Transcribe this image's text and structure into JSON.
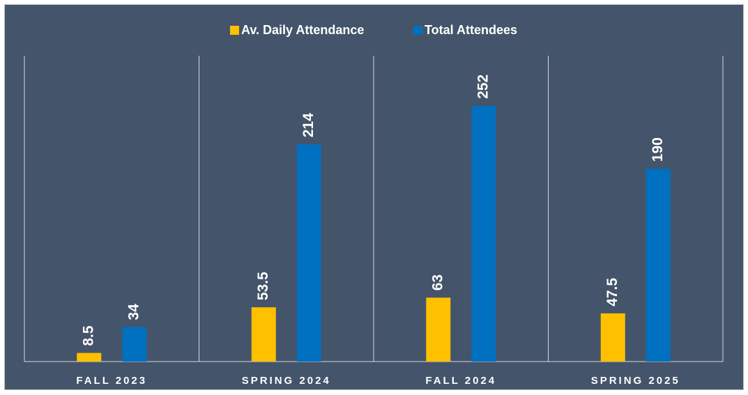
{
  "chart_data": {
    "type": "bar",
    "categories": [
      "FALL 2023",
      "SPRING 2024",
      "FALL 2024",
      "SPRING 2025"
    ],
    "series": [
      {
        "name": "Av. Daily Attendance",
        "color": "#FFC000",
        "values": [
          8.5,
          53.5,
          63,
          47.5
        ]
      },
      {
        "name": "Total Attendees",
        "color": "#0070C0",
        "values": [
          34,
          214,
          252,
          190
        ]
      }
    ],
    "ylim": [
      0,
      300
    ]
  }
}
